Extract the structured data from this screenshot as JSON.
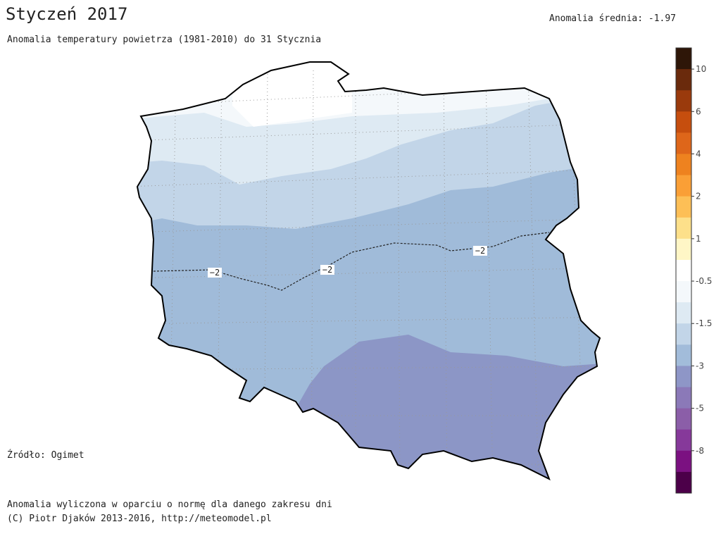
{
  "header": {
    "title": "Styczeń 2017",
    "subtitle": "Anomalia temperatury powietrza (1981-2010) do 31 Stycznia",
    "mean": "Anomalia średnia: -1.97"
  },
  "map": {
    "contour_labels": [
      "−2",
      "−2",
      "−2"
    ]
  },
  "colorbar": {
    "colors": [
      "#2e1608",
      "#6a2a0c",
      "#9a3a0c",
      "#c64e0e",
      "#de661a",
      "#ee821f",
      "#fa9f36",
      "#fdbf56",
      "#fde08a",
      "#fff6c6",
      "#ffffff",
      "#f4f8fb",
      "#deeaf3",
      "#c2d5e8",
      "#a2bcda",
      "#8e96c7",
      "#8b79b8",
      "#8b5ea8",
      "#86399a",
      "#7b1181",
      "#4c0049"
    ],
    "labels": [
      "10",
      "6",
      "4",
      "2",
      "1",
      "-0.5",
      "-1.5",
      "-3",
      "-5",
      "-8"
    ]
  },
  "footer": {
    "source": "Źródło: Ogimet",
    "note": "Anomalia wyliczona w oparciu o normę dla danego zakresu dni",
    "copyright": "(C) Piotr Djaków 2013-2016, http://meteomodel.pl"
  }
}
